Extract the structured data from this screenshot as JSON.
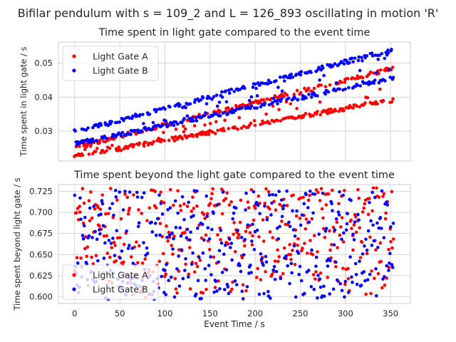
{
  "figure": {
    "suptitle": "Bifilar pendulum with s = 109_2 and L = 126_893 oscillating in motion 'R'"
  },
  "colors": {
    "gate_a": "#ff0000",
    "gate_b": "#0000ff",
    "grid": "#cccccc",
    "axes_bg": "#ffffff",
    "spine": "#cccccc",
    "text": "#262626"
  },
  "chart_data": [
    {
      "type": "scatter",
      "title": "Time spent in light gate compared to the event time",
      "xlabel": "",
      "ylabel": "Time spent in light gate / s",
      "xlim": [
        -18,
        372
      ],
      "ylim": [
        0.0212,
        0.0562
      ],
      "xticks": [
        0,
        50,
        100,
        150,
        200,
        250,
        300,
        350
      ],
      "xticklabels_visible": false,
      "yticks": [
        0.03,
        0.04,
        0.05
      ],
      "yticklabels": [
        "0.03",
        "0.04",
        "0.05"
      ],
      "grid": true,
      "legend": "upper left",
      "series": [
        {
          "name": "Light Gate A",
          "color": "#ff0000",
          "x_range": [
            0,
            353
          ],
          "points": 400,
          "pattern": "red lower band, two interleaved linear trends over time",
          "trend_low": [
            0.0225,
            0.0392
          ],
          "trend_high": [
            0.0252,
            0.0485
          ],
          "noise": 0.0006
        },
        {
          "name": "Light Gate B",
          "color": "#0000ff",
          "x_range": [
            0,
            353
          ],
          "points": 400,
          "pattern": "blue upper band, two interleaved linear trends over time",
          "trend_low": [
            0.0262,
            0.0455
          ],
          "trend_high": [
            0.0298,
            0.054
          ],
          "noise": 0.0006
        }
      ]
    },
    {
      "type": "scatter",
      "title": "Time spent beyond the light gate compared to the event time",
      "xlabel": "Event Time / s",
      "ylabel": "Time spent beyond light gate / s",
      "xlim": [
        -18,
        372
      ],
      "ylim": [
        0.592,
        0.733
      ],
      "xticks": [
        0,
        50,
        100,
        150,
        200,
        250,
        300,
        350
      ],
      "xticklabels": [
        "0",
        "50",
        "100",
        "150",
        "200",
        "250",
        "300",
        "350"
      ],
      "yticks": [
        0.6,
        0.625,
        0.65,
        0.675,
        0.7,
        0.725
      ],
      "yticklabels": [
        "0.600",
        "0.625",
        "0.650",
        "0.675",
        "0.700",
        "0.725"
      ],
      "grid": true,
      "legend": "lower left",
      "series": [
        {
          "name": "Light Gate A",
          "color": "#ff0000",
          "x_range": [
            0,
            353
          ],
          "points": 400,
          "y_range": [
            0.598,
            0.729
          ],
          "pattern": "spread across full range, denser near the top edge (~0.725)"
        },
        {
          "name": "Light Gate B",
          "color": "#0000ff",
          "x_range": [
            0,
            353
          ],
          "points": 400,
          "y_range": [
            0.597,
            0.726
          ],
          "pattern": "spread across full range"
        }
      ]
    }
  ]
}
